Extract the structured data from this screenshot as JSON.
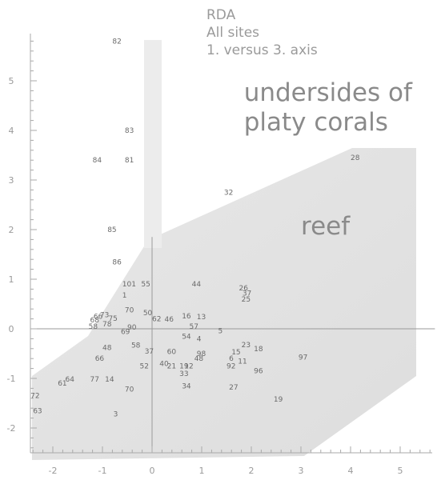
{
  "chart_data": {
    "type": "scatter",
    "title_lines": [
      "RDA",
      "All sites",
      "1. versus 3. axis"
    ],
    "xlim": [
      -2.5,
      5.7
    ],
    "ylim": [
      -2.4,
      5.8
    ],
    "x_ticks": [
      -2,
      -1,
      0,
      1,
      2,
      3,
      4,
      5
    ],
    "y_ticks": [
      -2,
      -1,
      0,
      1,
      2,
      3,
      4,
      5
    ],
    "region_labels": [
      {
        "text": "undersides of",
        "x": 1.85,
        "y": 4.6
      },
      {
        "text": "platy corals",
        "x": 1.85,
        "y": 4.0
      },
      {
        "text": "reef",
        "x": 3.0,
        "y": 1.9
      }
    ],
    "points": [
      {
        "label": "82",
        "x": -0.8,
        "y": 5.8
      },
      {
        "label": "83",
        "x": -0.55,
        "y": 4.0
      },
      {
        "label": "84",
        "x": -1.2,
        "y": 3.4
      },
      {
        "label": "81",
        "x": -0.55,
        "y": 3.4
      },
      {
        "label": "85",
        "x": -0.9,
        "y": 2.0
      },
      {
        "label": "86",
        "x": -0.8,
        "y": 1.35
      },
      {
        "label": "101",
        "x": -0.6,
        "y": 0.9
      },
      {
        "label": "55",
        "x": -0.22,
        "y": 0.9
      },
      {
        "label": "1",
        "x": -0.6,
        "y": 0.68
      },
      {
        "label": "28",
        "x": 4.0,
        "y": 3.45
      },
      {
        "label": "32",
        "x": 1.45,
        "y": 2.75
      },
      {
        "label": "44",
        "x": 0.8,
        "y": 0.9
      },
      {
        "label": "26",
        "x": 1.75,
        "y": 0.82
      },
      {
        "label": "37",
        "x": 1.82,
        "y": 0.72
      },
      {
        "label": "25",
        "x": 1.8,
        "y": 0.6
      },
      {
        "label": "70",
        "x": -0.55,
        "y": 0.38
      },
      {
        "label": "50",
        "x": -0.18,
        "y": 0.32
      },
      {
        "label": "16",
        "x": 0.6,
        "y": 0.26
      },
      {
        "label": "13",
        "x": 0.9,
        "y": 0.24
      },
      {
        "label": "62",
        "x": 0.0,
        "y": 0.2
      },
      {
        "label": "46",
        "x": 0.25,
        "y": 0.19
      },
      {
        "label": "57",
        "x": 0.75,
        "y": 0.05
      },
      {
        "label": "66",
        "x": -1.18,
        "y": 0.25
      },
      {
        "label": "68",
        "x": -1.25,
        "y": 0.18
      },
      {
        "label": "73",
        "x": -1.05,
        "y": 0.28
      },
      {
        "label": "75",
        "x": -0.88,
        "y": 0.21
      },
      {
        "label": "78",
        "x": -1.0,
        "y": 0.1
      },
      {
        "label": "58",
        "x": -1.28,
        "y": 0.05
      },
      {
        "label": "69",
        "x": -0.63,
        "y": -0.06
      },
      {
        "label": "90",
        "x": -0.5,
        "y": 0.03
      },
      {
        "label": "5",
        "x": 1.33,
        "y": -0.04
      },
      {
        "label": "23",
        "x": 1.8,
        "y": -0.32
      },
      {
        "label": "18",
        "x": 2.05,
        "y": -0.4
      },
      {
        "label": "4",
        "x": 0.9,
        "y": -0.2
      },
      {
        "label": "54",
        "x": 0.6,
        "y": -0.15
      },
      {
        "label": "60",
        "x": 0.3,
        "y": -0.46
      },
      {
        "label": "58",
        "x": -0.42,
        "y": -0.33
      },
      {
        "label": "48",
        "x": -1.0,
        "y": -0.38
      },
      {
        "label": "66",
        "x": -1.15,
        "y": -0.6
      },
      {
        "label": "37",
        "x": -0.15,
        "y": -0.45
      },
      {
        "label": "15",
        "x": 1.6,
        "y": -0.47
      },
      {
        "label": "98",
        "x": 0.9,
        "y": -0.5
      },
      {
        "label": "48",
        "x": 0.85,
        "y": -0.6
      },
      {
        "label": "6",
        "x": 1.55,
        "y": -0.6
      },
      {
        "label": "11",
        "x": 1.73,
        "y": -0.65
      },
      {
        "label": "92",
        "x": 1.5,
        "y": -0.75
      },
      {
        "label": "96",
        "x": 2.05,
        "y": -0.85
      },
      {
        "label": "97",
        "x": 2.95,
        "y": -0.57
      },
      {
        "label": "40",
        "x": 0.15,
        "y": -0.7
      },
      {
        "label": "21",
        "x": 0.3,
        "y": -0.75
      },
      {
        "label": "19",
        "x": 0.55,
        "y": -0.75
      },
      {
        "label": "12",
        "x": 0.65,
        "y": -0.75
      },
      {
        "label": "52",
        "x": -0.25,
        "y": -0.75
      },
      {
        "label": "33",
        "x": 0.55,
        "y": -0.9
      },
      {
        "label": "34",
        "x": 0.6,
        "y": -1.15
      },
      {
        "label": "27",
        "x": 1.55,
        "y": -1.18
      },
      {
        "label": "19",
        "x": 2.45,
        "y": -1.42
      },
      {
        "label": "77",
        "x": -1.25,
        "y": -1.02
      },
      {
        "label": "14",
        "x": -0.95,
        "y": -1.02
      },
      {
        "label": "64",
        "x": -1.75,
        "y": -1.02
      },
      {
        "label": "61",
        "x": -1.9,
        "y": -1.1
      },
      {
        "label": "70",
        "x": -0.55,
        "y": -1.22
      },
      {
        "label": "72",
        "x": -2.45,
        "y": -1.35
      },
      {
        "label": "63",
        "x": -2.4,
        "y": -1.65
      },
      {
        "label": "3",
        "x": -0.78,
        "y": -1.72
      }
    ]
  }
}
